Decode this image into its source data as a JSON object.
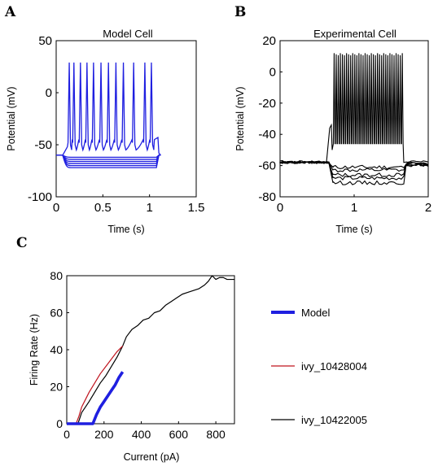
{
  "chart_data": [
    {
      "panel": "A",
      "type": "line",
      "title": "Model Cell",
      "xlabel": "Time (s)",
      "ylabel": "Potential (mV)",
      "xlim": [
        0,
        1.5
      ],
      "ylim": [
        -100,
        50
      ],
      "xticks": [
        "0",
        "0.5",
        "1",
        "1.5"
      ],
      "yticks": [
        "-100",
        "-50",
        "0",
        "50"
      ],
      "color": "#1f1fe0",
      "rest_mV": -60,
      "step_start_s": 0.07,
      "step_end_s": 1.1,
      "hyperpolarized_levels_mV": [
        -62,
        -64,
        -66,
        -68,
        -70,
        -72
      ],
      "spike_times_s": [
        0.14,
        0.19,
        0.26,
        0.33,
        0.4,
        0.48,
        0.56,
        0.64,
        0.72,
        0.83,
        0.95,
        1.02
      ],
      "spike_peak_mV": 29,
      "trough_mV": -46
    },
    {
      "panel": "B",
      "type": "line",
      "title": "Experimental Cell",
      "xlabel": "Time (s)",
      "ylabel": "Potential (mV)",
      "xlim": [
        0,
        2
      ],
      "ylim": [
        -80,
        20
      ],
      "xticks": [
        "0",
        "1",
        "2"
      ],
      "yticks": [
        "-80",
        "-60",
        "-40",
        "-20",
        "0",
        "20"
      ],
      "color": "#000000",
      "rest_mV": -58,
      "step_start_s": 0.67,
      "step_end_s": 1.67,
      "hyperpolarized_levels_mV": [
        -61,
        -63,
        -66,
        -68,
        -71
      ],
      "spike_count": 34,
      "spike_peak_mV": 12,
      "trough_mV": -46
    },
    {
      "panel": "C",
      "type": "line",
      "xlabel": "Current (pA)",
      "ylabel": "Firing Rate (Hz)",
      "xlim": [
        0,
        900
      ],
      "ylim": [
        0,
        80
      ],
      "xticks": [
        "0",
        "200",
        "400",
        "600",
        "800"
      ],
      "yticks": [
        "0",
        "20",
        "40",
        "60",
        "80"
      ],
      "legend_position": "right",
      "series": [
        {
          "name": "Model",
          "color": "#1f1fe0",
          "x": [
            0,
            140,
            160,
            180,
            200,
            220,
            240,
            260,
            280,
            300
          ],
          "y": [
            0,
            0,
            5,
            9,
            12,
            15,
            18,
            21,
            25,
            28
          ]
        },
        {
          "name": "ivy_10428004",
          "color": "#c0141e",
          "x": [
            50,
            65,
            80,
            100,
            120,
            150,
            180,
            210,
            240,
            270,
            300
          ],
          "y": [
            0,
            4,
            9,
            13,
            17,
            22,
            27,
            31,
            35,
            39,
            42
          ]
        },
        {
          "name": "ivy_10422005",
          "color": "#000000",
          "x": [
            0,
            60,
            80,
            100,
            120,
            150,
            180,
            210,
            240,
            270,
            300,
            320,
            350,
            380,
            410,
            440,
            470,
            500,
            530,
            560,
            590,
            620,
            650,
            680,
            710,
            740,
            760,
            780,
            800,
            820,
            840,
            860,
            880,
            900
          ],
          "y": [
            0,
            0,
            6,
            9,
            12,
            17,
            22,
            26,
            31,
            36,
            42,
            47,
            51,
            53,
            56,
            57,
            60,
            61,
            64,
            66,
            68,
            70,
            71,
            72,
            73,
            75,
            77,
            80,
            78,
            79,
            79,
            78,
            78,
            78
          ]
        }
      ]
    }
  ]
}
